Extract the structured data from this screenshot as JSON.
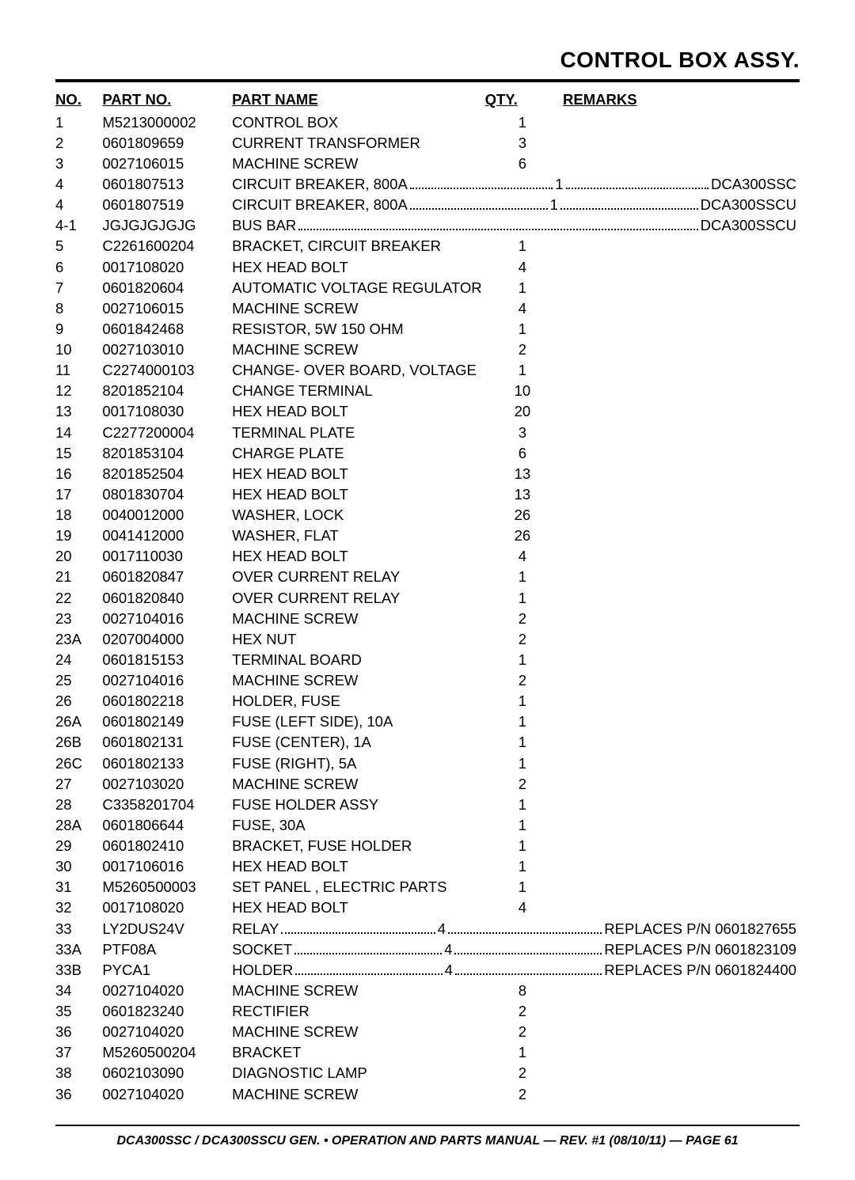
{
  "title": "CONTROL BOX ASSY.",
  "columns": {
    "no": "NO.",
    "partNo": "PART NO.",
    "partName": "PART NAME",
    "qty": "QTY.",
    "remarks": "REMARKS"
  },
  "rows": [
    {
      "no": "1",
      "pn": "M5213000002",
      "name": "CONTROL BOX",
      "qty": "1",
      "rem": ""
    },
    {
      "no": "2",
      "pn": "0601809659",
      "name": "CURRENT TRANSFORMER",
      "qty": "3",
      "rem": ""
    },
    {
      "no": "3",
      "pn": "0027106015",
      "name": "MACHINE SCREW",
      "qty": "6",
      "rem": ""
    },
    {
      "no": "4",
      "pn": "0601807513",
      "name": "CIRCUIT BREAKER, 800A",
      "qty": "1",
      "rem": "DCA300SSC",
      "dots": true
    },
    {
      "no": "4",
      "pn": "0601807519",
      "name": "CIRCUIT BREAKER, 800A",
      "qty": "1",
      "rem": "DCA300SSCU",
      "dots": true
    },
    {
      "no": "4-1",
      "pn": "JGJGJGJGJG",
      "name": "BUS BAR",
      "qty": "",
      "rem": "DCA300SSCU",
      "dots": true,
      "noqty": true
    },
    {
      "no": "5",
      "pn": "C2261600204",
      "name": "BRACKET, CIRCUIT BREAKER",
      "qty": "1",
      "rem": ""
    },
    {
      "no": "6",
      "pn": "0017108020",
      "name": "HEX HEAD BOLT",
      "qty": "4",
      "rem": ""
    },
    {
      "no": "7",
      "pn": "0601820604",
      "name": "AUTOMATIC VOLTAGE REGULATOR",
      "qty": "1",
      "rem": ""
    },
    {
      "no": "8",
      "pn": "0027106015",
      "name": "MACHINE SCREW",
      "qty": "4",
      "rem": ""
    },
    {
      "no": "9",
      "pn": "0601842468",
      "name": "RESISTOR, 5W 150 OHM",
      "qty": "1",
      "rem": ""
    },
    {
      "no": "10",
      "pn": "0027103010",
      "name": "MACHINE SCREW",
      "qty": "2",
      "rem": ""
    },
    {
      "no": "11",
      "pn": "C2274000103",
      "name": "CHANGE- OVER BOARD, VOLTAGE",
      "qty": "1",
      "rem": ""
    },
    {
      "no": "12",
      "pn": "8201852104",
      "name": "CHANGE TERMINAL",
      "qty": "10",
      "rem": ""
    },
    {
      "no": "13",
      "pn": "0017108030",
      "name": "HEX HEAD BOLT",
      "qty": "20",
      "rem": ""
    },
    {
      "no": "14",
      "pn": "C2277200004",
      "name": "TERMINAL PLATE",
      "qty": "3",
      "rem": ""
    },
    {
      "no": "15",
      "pn": "8201853104",
      "name": "CHARGE PLATE",
      "qty": "6",
      "rem": ""
    },
    {
      "no": "16",
      "pn": "8201852504",
      "name": "HEX HEAD BOLT",
      "qty": "13",
      "rem": ""
    },
    {
      "no": "17",
      "pn": "0801830704",
      "name": "HEX HEAD BOLT",
      "qty": "13",
      "rem": ""
    },
    {
      "no": "18",
      "pn": "0040012000",
      "name": "WASHER, LOCK",
      "qty": "26",
      "rem": ""
    },
    {
      "no": "19",
      "pn": "0041412000",
      "name": "WASHER, FLAT",
      "qty": "26",
      "rem": ""
    },
    {
      "no": "20",
      "pn": "0017110030",
      "name": "HEX HEAD BOLT",
      "qty": "4",
      "rem": ""
    },
    {
      "no": "21",
      "pn": "0601820847",
      "name": "OVER CURRENT RELAY",
      "qty": "1",
      "rem": ""
    },
    {
      "no": "22",
      "pn": "0601820840",
      "name": "OVER CURRENT RELAY",
      "qty": "1",
      "rem": ""
    },
    {
      "no": "23",
      "pn": "0027104016",
      "name": "MACHINE SCREW",
      "qty": "2",
      "rem": ""
    },
    {
      "no": "23A",
      "pn": "0207004000",
      "name": "HEX NUT",
      "qty": "2",
      "rem": ""
    },
    {
      "no": "24",
      "pn": "0601815153",
      "name": "TERMINAL BOARD",
      "qty": "1",
      "rem": ""
    },
    {
      "no": "25",
      "pn": "0027104016",
      "name": "MACHINE SCREW",
      "qty": "2",
      "rem": ""
    },
    {
      "no": "26",
      "pn": "0601802218",
      "name": "HOLDER, FUSE",
      "qty": "1",
      "rem": ""
    },
    {
      "no": "26A",
      "pn": "0601802149",
      "name": "FUSE (LEFT SIDE), 10A",
      "qty": "1",
      "rem": ""
    },
    {
      "no": "26B",
      "pn": "0601802131",
      "name": "FUSE (CENTER), 1A",
      "qty": "1",
      "rem": ""
    },
    {
      "no": "26C",
      "pn": "0601802133",
      "name": "FUSE (RIGHT), 5A",
      "qty": "1",
      "rem": ""
    },
    {
      "no": "27",
      "pn": "0027103020",
      "name": "MACHINE SCREW",
      "qty": "2",
      "rem": ""
    },
    {
      "no": "28",
      "pn": "C3358201704",
      "name": "FUSE HOLDER ASSY",
      "qty": "1",
      "rem": ""
    },
    {
      "no": "28A",
      "pn": "0601806644",
      "name": "FUSE, 30A",
      "qty": "1",
      "rem": ""
    },
    {
      "no": "29",
      "pn": "0601802410",
      "name": "BRACKET, FUSE HOLDER",
      "qty": "1",
      "rem": ""
    },
    {
      "no": "30",
      "pn": "0017106016",
      "name": "HEX HEAD BOLT",
      "qty": "1",
      "rem": ""
    },
    {
      "no": "31",
      "pn": "M5260500003",
      "name": "SET PANEL , ELECTRIC PARTS",
      "qty": "1",
      "rem": ""
    },
    {
      "no": "32",
      "pn": "0017108020",
      "name": "HEX HEAD BOLT",
      "qty": "4",
      "rem": ""
    },
    {
      "no": "33",
      "pn": "LY2DUS24V",
      "name": "RELAY",
      "qty": "4",
      "rem": "REPLACES P/N 0601827655",
      "dots": true
    },
    {
      "no": "33A",
      "pn": "PTF08A",
      "name": "SOCKET",
      "qty": "4",
      "rem": "REPLACES P/N 0601823109",
      "dots": true
    },
    {
      "no": "33B",
      "pn": "PYCA1",
      "name": "HOLDER",
      "qty": "4",
      "rem": "REPLACES P/N 0601824400",
      "dots": true
    },
    {
      "no": "34",
      "pn": "0027104020",
      "name": "MACHINE SCREW",
      "qty": "8",
      "rem": ""
    },
    {
      "no": "35",
      "pn": "0601823240",
      "name": "RECTIFIER",
      "qty": "2",
      "rem": ""
    },
    {
      "no": "36",
      "pn": "0027104020",
      "name": "MACHINE SCREW",
      "qty": "2",
      "rem": ""
    },
    {
      "no": "37",
      "pn": "M5260500204",
      "name": "BRACKET",
      "qty": "1",
      "rem": ""
    },
    {
      "no": "38",
      "pn": "0602103090",
      "name": "DIAGNOSTIC LAMP",
      "qty": "2",
      "rem": ""
    },
    {
      "no": "36",
      "pn": "0027104020",
      "name": "MACHINE SCREW",
      "qty": "2",
      "rem": ""
    }
  ],
  "footer": "DCA300SSC / DCA300SSCU GEN. • OPERATION AND PARTS MANUAL — REV. #1 (08/10/11) — PAGE 61"
}
